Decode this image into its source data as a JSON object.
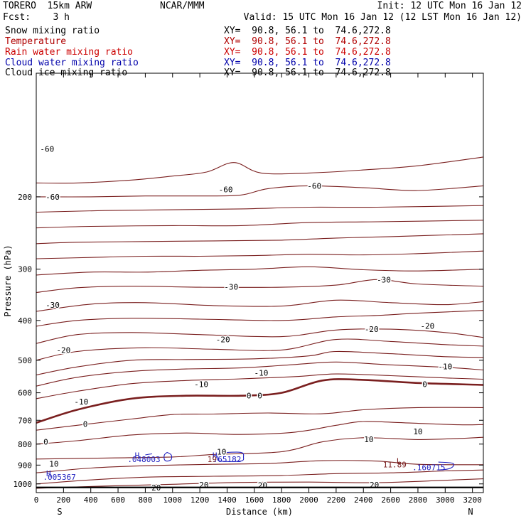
{
  "header": {
    "left_line1": "TORERO  15km ARW",
    "center_line1": "NCAR/MMM",
    "right_line1": "Init: 12 UTC Mon 16 Jan 12",
    "left_line2": "Fcst:    3 h",
    "right_line2": "Valid: 15 UTC Mon 16 Jan 12 (12 LST Mon 16 Jan 12)"
  },
  "fields": [
    {
      "name": "Snow mixing ratio",
      "xy": "XY=  90.8, 56.1 to  74.6,272.8",
      "color": "#000000"
    },
    {
      "name": "Temperature",
      "xy": "XY=  90.8, 56.1 to  74.6,272.8",
      "color": "#b00000"
    },
    {
      "name": "Rain water mixing ratio",
      "xy": "XY=  90.8, 56.1 to  74.6,272.8",
      "color": "#cc0000"
    },
    {
      "name": "Cloud water mixing ratio",
      "xy": "XY=  90.8, 56.1 to  74.6,272.8",
      "color": "#0000aa"
    },
    {
      "name": "Cloud ice mixing ratio",
      "xy": "XY=  90.8, 56.1 to  74.6,272.8",
      "color": "#000000"
    }
  ],
  "colors": {
    "temperature": "#7a1f1f",
    "cloud_water": "#2020c0",
    "axis": "#000000"
  },
  "chart_data": {
    "type": "contour",
    "xlabel": "Distance (km)",
    "ylabel": "Pressure (hPa)",
    "x_endpoints": {
      "left": "S",
      "right": "N"
    },
    "xlim": [
      0,
      3280
    ],
    "ylim_log_pressure": [
      1050,
      100
    ],
    "xticks": [
      0,
      200,
      400,
      600,
      800,
      1000,
      1200,
      1400,
      1600,
      1800,
      2000,
      2200,
      2400,
      2600,
      2800,
      3000,
      3200
    ],
    "yticks": [
      200,
      300,
      400,
      500,
      600,
      700,
      800,
      900,
      1000
    ],
    "temperature_contours": [
      {
        "level": -60,
        "points": [
          [
            0,
            185
          ],
          [
            300,
            185
          ],
          [
            700,
            182
          ],
          [
            1000,
            178
          ],
          [
            1250,
            174
          ],
          [
            1450,
            165
          ],
          [
            1650,
            175
          ],
          [
            2000,
            175
          ],
          [
            2400,
            172
          ],
          [
            2800,
            168
          ],
          [
            3280,
            160
          ]
        ]
      },
      {
        "level": -60,
        "points": [
          [
            0,
            200
          ],
          [
            400,
            200
          ],
          [
            800,
            199
          ],
          [
            1200,
            199
          ],
          [
            1500,
            198
          ],
          [
            1700,
            191
          ],
          [
            2000,
            188
          ],
          [
            2400,
            190
          ],
          [
            2800,
            193
          ],
          [
            3280,
            188
          ]
        ]
      },
      {
        "level": -60,
        "points": [
          [
            0,
            218
          ],
          [
            500,
            216
          ],
          [
            1000,
            215
          ],
          [
            1500,
            214
          ],
          [
            2000,
            212
          ],
          [
            2500,
            212
          ],
          [
            3280,
            210
          ]
        ]
      },
      {
        "level": -60,
        "points": [
          [
            0,
            238
          ],
          [
            400,
            236
          ],
          [
            1000,
            235
          ],
          [
            1500,
            235
          ],
          [
            2000,
            231
          ],
          [
            2500,
            230
          ],
          [
            3280,
            228
          ]
        ]
      },
      {
        "level": -30,
        "points": [
          [
            0,
            260
          ],
          [
            300,
            258
          ],
          [
            800,
            257
          ],
          [
            1300,
            256
          ],
          [
            1800,
            255
          ],
          [
            2200,
            252
          ],
          [
            2600,
            250
          ],
          [
            3280,
            246
          ]
        ]
      },
      {
        "level": -30,
        "points": [
          [
            0,
            283
          ],
          [
            400,
            281
          ],
          [
            800,
            279
          ],
          [
            1200,
            279
          ],
          [
            1600,
            278
          ],
          [
            2000,
            276
          ],
          [
            2400,
            277
          ],
          [
            2800,
            275
          ],
          [
            3280,
            271
          ]
        ]
      },
      {
        "level": -30,
        "points": [
          [
            0,
            310
          ],
          [
            400,
            305
          ],
          [
            800,
            305
          ],
          [
            1200,
            302
          ],
          [
            1600,
            300
          ],
          [
            2000,
            296
          ],
          [
            2400,
            301
          ],
          [
            2800,
            303
          ],
          [
            3280,
            300
          ]
        ]
      },
      {
        "level": -30,
        "points": [
          [
            0,
            342
          ],
          [
            300,
            333
          ],
          [
            700,
            330
          ],
          [
            1200,
            332
          ],
          [
            1800,
            332
          ],
          [
            2200,
            328
          ],
          [
            2500,
            318
          ],
          [
            2800,
            326
          ],
          [
            3280,
            330
          ]
        ]
      },
      {
        "level": -30,
        "points": [
          [
            0,
            380
          ],
          [
            400,
            365
          ],
          [
            800,
            362
          ],
          [
            1300,
            368
          ],
          [
            1800,
            369
          ],
          [
            2200,
            357
          ],
          [
            2600,
            362
          ],
          [
            3000,
            366
          ],
          [
            3280,
            360
          ]
        ]
      },
      {
        "level": -20,
        "points": [
          [
            0,
            413
          ],
          [
            300,
            400
          ],
          [
            700,
            395
          ],
          [
            1200,
            397
          ],
          [
            1800,
            400
          ],
          [
            2200,
            392
          ],
          [
            2500,
            389
          ],
          [
            2800,
            384
          ],
          [
            3280,
            378
          ]
        ]
      },
      {
        "level": -20,
        "points": [
          [
            0,
            455
          ],
          [
            300,
            433
          ],
          [
            700,
            428
          ],
          [
            1200,
            433
          ],
          [
            1800,
            438
          ],
          [
            2200,
            422
          ],
          [
            2600,
            420
          ],
          [
            3000,
            428
          ],
          [
            3280,
            440
          ]
        ]
      },
      {
        "level": -20,
        "points": [
          [
            0,
            500
          ],
          [
            300,
            476
          ],
          [
            800,
            466
          ],
          [
            1300,
            470
          ],
          [
            1800,
            472
          ],
          [
            2200,
            445
          ],
          [
            2600,
            450
          ],
          [
            3000,
            458
          ],
          [
            3280,
            462
          ]
        ]
      },
      {
        "level": -10,
        "points": [
          [
            0,
            543
          ],
          [
            300,
            519
          ],
          [
            700,
            500
          ],
          [
            1100,
            498
          ],
          [
            1600,
            496
          ],
          [
            2000,
            488
          ],
          [
            2200,
            476
          ],
          [
            2600,
            482
          ],
          [
            3000,
            490
          ],
          [
            3280,
            492
          ]
        ]
      },
      {
        "level": -10,
        "points": [
          [
            0,
            578
          ],
          [
            300,
            550
          ],
          [
            700,
            532
          ],
          [
            1100,
            525
          ],
          [
            1500,
            522
          ],
          [
            1900,
            512
          ],
          [
            2200,
            505
          ],
          [
            2600,
            513
          ],
          [
            3000,
            520
          ],
          [
            3280,
            528
          ]
        ]
      },
      {
        "level": -10,
        "points": [
          [
            0,
            620
          ],
          [
            300,
            595
          ],
          [
            700,
            570
          ],
          [
            1100,
            560
          ],
          [
            1500,
            555
          ],
          [
            1900,
            548
          ],
          [
            2200,
            540
          ],
          [
            2600,
            545
          ],
          [
            3000,
            552
          ],
          [
            3280,
            556
          ]
        ]
      },
      {
        "level": 0,
        "thick": true,
        "points": [
          [
            0,
            710
          ],
          [
            300,
            660
          ],
          [
            700,
            620
          ],
          [
            1100,
            610
          ],
          [
            1500,
            610
          ],
          [
            1800,
            600
          ],
          [
            2100,
            560
          ],
          [
            2400,
            558
          ],
          [
            2800,
            568
          ],
          [
            3280,
            574
          ]
        ]
      },
      {
        "level": 0,
        "points": [
          [
            0,
            740
          ],
          [
            300,
            720
          ],
          [
            700,
            695
          ],
          [
            1000,
            678
          ],
          [
            1300,
            676
          ],
          [
            1700,
            672
          ],
          [
            2100,
            675
          ],
          [
            2400,
            660
          ],
          [
            2800,
            652
          ],
          [
            3280,
            652
          ]
        ]
      },
      {
        "level": 10,
        "points": [
          [
            0,
            800
          ],
          [
            300,
            785
          ],
          [
            700,
            760
          ],
          [
            1100,
            752
          ],
          [
            1500,
            758
          ],
          [
            1900,
            748
          ],
          [
            2200,
            720
          ],
          [
            2400,
            705
          ],
          [
            2700,
            710
          ],
          [
            3100,
            718
          ],
          [
            3280,
            717
          ]
        ]
      },
      {
        "level": 10,
        "points": [
          [
            0,
            870
          ],
          [
            500,
            865
          ],
          [
            1000,
            860
          ],
          [
            1300,
            848
          ],
          [
            1800,
            835
          ],
          [
            2100,
            790
          ],
          [
            2400,
            772
          ],
          [
            2800,
            780
          ],
          [
            3100,
            775
          ],
          [
            3280,
            770
          ]
        ]
      },
      {
        "level": 10,
        "points": [
          [
            0,
            940
          ],
          [
            400,
            915
          ],
          [
            800,
            903
          ],
          [
            1300,
            896
          ],
          [
            1700,
            892
          ],
          [
            2100,
            878
          ],
          [
            2500,
            880
          ],
          [
            2800,
            896
          ],
          [
            3280,
            898
          ]
        ]
      },
      {
        "level": 10,
        "points": [
          [
            0,
            1000
          ],
          [
            400,
            978
          ],
          [
            800,
            963
          ],
          [
            1300,
            958
          ],
          [
            1800,
            954
          ],
          [
            2200,
            944
          ],
          [
            2600,
            940
          ],
          [
            3000,
            930
          ],
          [
            3280,
            925
          ]
        ]
      },
      {
        "level": 20,
        "points": [
          [
            0,
            1025
          ],
          [
            500,
            1012
          ],
          [
            1000,
            1002
          ],
          [
            1500,
            992
          ],
          [
            2000,
            990
          ],
          [
            2500,
            993
          ],
          [
            3000,
            980
          ],
          [
            3280,
            972
          ]
        ]
      }
    ],
    "temperature_labels": [
      {
        "text": "-60",
        "x": 80,
        "p": 153
      },
      {
        "text": "-60",
        "x": 120,
        "p": 200
      },
      {
        "text": "-60",
        "x": 1390,
        "p": 192
      },
      {
        "text": "-60",
        "x": 2040,
        "p": 188
      },
      {
        "text": "-30",
        "x": 1430,
        "p": 331
      },
      {
        "text": "-30",
        "x": 2550,
        "p": 318
      },
      {
        "text": "-30",
        "x": 120,
        "p": 367
      },
      {
        "text": "-20",
        "x": 2460,
        "p": 420
      },
      {
        "text": "-20",
        "x": 2870,
        "p": 412
      },
      {
        "text": "-20",
        "x": 1370,
        "p": 445
      },
      {
        "text": "-20",
        "x": 200,
        "p": 472
      },
      {
        "text": "-10",
        "x": 1650,
        "p": 537
      },
      {
        "text": "-10",
        "x": 3000,
        "p": 518
      },
      {
        "text": "-10",
        "x": 1210,
        "p": 572
      },
      {
        "text": "-10",
        "x": 330,
        "p": 630
      },
      {
        "text": "0",
        "x": 1560,
        "p": 610
      },
      {
        "text": "0",
        "x": 1640,
        "p": 610
      },
      {
        "text": "0",
        "x": 2850,
        "p": 572
      },
      {
        "text": "0",
        "x": 360,
        "p": 715
      },
      {
        "text": "0",
        "x": 70,
        "p": 790
      },
      {
        "text": "10",
        "x": 2440,
        "p": 778
      },
      {
        "text": "10",
        "x": 2800,
        "p": 745
      },
      {
        "text": "10",
        "x": 1360,
        "p": 835
      },
      {
        "text": "10",
        "x": 130,
        "p": 893
      },
      {
        "text": "20",
        "x": 880,
        "p": 1022
      },
      {
        "text": "20",
        "x": 1230,
        "p": 1005
      },
      {
        "text": "20",
        "x": 1660,
        "p": 1007
      },
      {
        "text": "20",
        "x": 2480,
        "p": 1005
      }
    ],
    "annotations": [
      {
        "text": "H",
        "x": 740,
        "p": 852,
        "color": "blue"
      },
      {
        "text": ".048003",
        "x": 790,
        "p": 870,
        "color": "blue"
      },
      {
        "text": "H",
        "x": 1310,
        "p": 852,
        "color": "blue"
      },
      {
        "text": "19",
        "x": 1290,
        "p": 870,
        "color": "dark"
      },
      {
        "text": ".65182",
        "x": 1400,
        "p": 870,
        "color": "blue"
      },
      {
        "text": "L",
        "x": 2660,
        "p": 880,
        "color": "dark"
      },
      {
        "text": "11.89",
        "x": 2630,
        "p": 897,
        "color": "dark"
      },
      {
        "text": ".160715",
        "x": 2880,
        "p": 912,
        "color": "blue"
      },
      {
        "text": "H",
        "x": 90,
        "p": 943,
        "color": "blue"
      },
      {
        "text": ".005367",
        "x": 170,
        "p": 962,
        "color": "blue"
      }
    ],
    "cloud_water_contours": [
      {
        "level": 0.02,
        "points": [
          [
            960,
            838
          ],
          [
            990,
            850
          ],
          [
            990,
            872
          ],
          [
            960,
            880
          ],
          [
            940,
            872
          ],
          [
            940,
            850
          ],
          [
            960,
            838
          ]
        ]
      },
      {
        "level": 0.02,
        "points": [
          [
            1350,
            840
          ],
          [
            1500,
            838
          ],
          [
            1520,
            860
          ],
          [
            1500,
            880
          ],
          [
            1350,
            880
          ],
          [
            1330,
            860
          ],
          [
            1350,
            840
          ]
        ]
      },
      {
        "level": 0.02,
        "points": [
          [
            2950,
            885
          ],
          [
            3050,
            890
          ],
          [
            3060,
            905
          ],
          [
            3020,
            920
          ],
          [
            2950,
            925
          ]
        ]
      },
      {
        "level": 0.02,
        "points": [
          [
            800,
            850
          ],
          [
            850,
            845
          ]
        ]
      }
    ]
  }
}
